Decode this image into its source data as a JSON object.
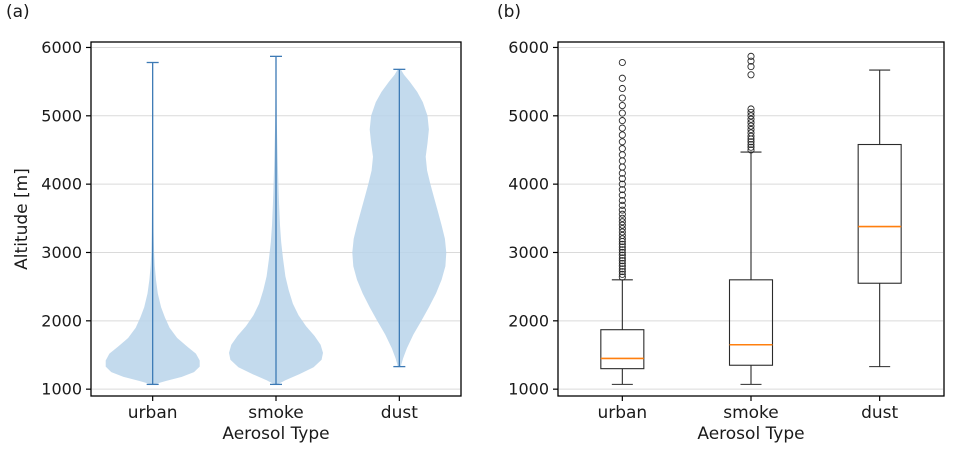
{
  "figure": {
    "background": "#ffffff"
  },
  "chart_data": [
    {
      "type": "violin",
      "panel_label": "(a)",
      "xlabel": "Aerosol Type",
      "ylabel": "Altitude [m]",
      "categories": [
        "urban",
        "smoke",
        "dust"
      ],
      "yticks": [
        1000,
        2000,
        3000,
        4000,
        5000,
        6000
      ],
      "ylim": [
        900,
        6080
      ],
      "grid": true,
      "fill_color": "#b9d3ea",
      "line_color": "#3d7ab5",
      "series": [
        {
          "name": "urban",
          "min": 1070,
          "max": 5780,
          "profile": [
            [
              1070,
              0.03
            ],
            [
              1120,
              0.28
            ],
            [
              1180,
              0.62
            ],
            [
              1250,
              0.88
            ],
            [
              1330,
              1.0
            ],
            [
              1420,
              1.0
            ],
            [
              1520,
              0.92
            ],
            [
              1620,
              0.74
            ],
            [
              1750,
              0.52
            ],
            [
              1900,
              0.36
            ],
            [
              2050,
              0.26
            ],
            [
              2200,
              0.18
            ],
            [
              2400,
              0.11
            ],
            [
              2600,
              0.07
            ],
            [
              2800,
              0.045
            ],
            [
              3000,
              0.03
            ],
            [
              3300,
              0.02
            ],
            [
              3700,
              0.015
            ],
            [
              4200,
              0.012
            ],
            [
              4800,
              0.01
            ],
            [
              5400,
              0.008
            ],
            [
              5780,
              0.006
            ]
          ]
        },
        {
          "name": "smoke",
          "min": 1070,
          "max": 5870,
          "profile": [
            [
              1070,
              0.03
            ],
            [
              1130,
              0.2
            ],
            [
              1220,
              0.5
            ],
            [
              1320,
              0.8
            ],
            [
              1430,
              0.97
            ],
            [
              1530,
              1.0
            ],
            [
              1650,
              0.95
            ],
            [
              1780,
              0.82
            ],
            [
              1920,
              0.64
            ],
            [
              2080,
              0.48
            ],
            [
              2250,
              0.36
            ],
            [
              2450,
              0.27
            ],
            [
              2650,
              0.2
            ],
            [
              2900,
              0.15
            ],
            [
              3150,
              0.11
            ],
            [
              3400,
              0.085
            ],
            [
              3700,
              0.065
            ],
            [
              4000,
              0.05
            ],
            [
              4300,
              0.038
            ],
            [
              4600,
              0.028
            ],
            [
              4900,
              0.018
            ],
            [
              5300,
              0.01
            ],
            [
              5870,
              0.005
            ]
          ]
        },
        {
          "name": "dust",
          "min": 1330,
          "max": 5680,
          "profile": [
            [
              1330,
              0.03
            ],
            [
              1450,
              0.08
            ],
            [
              1600,
              0.16
            ],
            [
              1800,
              0.3
            ],
            [
              2000,
              0.47
            ],
            [
              2200,
              0.63
            ],
            [
              2400,
              0.78
            ],
            [
              2600,
              0.9
            ],
            [
              2800,
              0.98
            ],
            [
              3000,
              1.0
            ],
            [
              3200,
              0.97
            ],
            [
              3400,
              0.9
            ],
            [
              3600,
              0.82
            ],
            [
              3800,
              0.74
            ],
            [
              4000,
              0.66
            ],
            [
              4200,
              0.59
            ],
            [
              4400,
              0.56
            ],
            [
              4600,
              0.6
            ],
            [
              4800,
              0.63
            ],
            [
              5000,
              0.6
            ],
            [
              5200,
              0.5
            ],
            [
              5350,
              0.38
            ],
            [
              5500,
              0.22
            ],
            [
              5600,
              0.1
            ],
            [
              5680,
              0.03
            ]
          ]
        }
      ]
    },
    {
      "type": "box",
      "panel_label": "(b)",
      "xlabel": "Aerosol Type",
      "ylabel": "",
      "categories": [
        "urban",
        "smoke",
        "dust"
      ],
      "yticks": [
        1000,
        2000,
        3000,
        4000,
        5000,
        6000
      ],
      "ylim": [
        900,
        6080
      ],
      "grid": true,
      "box_color": "#2b2b2b",
      "median_color": "#ff7f0e",
      "boxes": [
        {
          "name": "urban",
          "whisker_low": 1070,
          "q1": 1300,
          "median": 1450,
          "q3": 1870,
          "whisker_high": 2600,
          "outliers": [
            2640,
            2680,
            2720,
            2760,
            2800,
            2840,
            2880,
            2920,
            2960,
            3000,
            3040,
            3080,
            3120,
            3160,
            3200,
            3250,
            3300,
            3350,
            3400,
            3450,
            3500,
            3560,
            3620,
            3690,
            3760,
            3840,
            3920,
            4000,
            4080,
            4160,
            4250,
            4340,
            4430,
            4520,
            4620,
            4720,
            4820,
            4930,
            5040,
            5150,
            5260,
            5400,
            5550,
            5780
          ]
        },
        {
          "name": "smoke",
          "whisker_low": 1070,
          "q1": 1350,
          "median": 1650,
          "q3": 2600,
          "whisker_high": 4470,
          "outliers": [
            4500,
            4540,
            4580,
            4620,
            4660,
            4700,
            4750,
            4800,
            4850,
            4900,
            4950,
            5000,
            5050,
            5100,
            5600,
            5720,
            5800,
            5870
          ]
        },
        {
          "name": "dust",
          "whisker_low": 1330,
          "q1": 2550,
          "median": 3380,
          "q3": 4580,
          "whisker_high": 5670,
          "outliers": []
        }
      ]
    }
  ]
}
